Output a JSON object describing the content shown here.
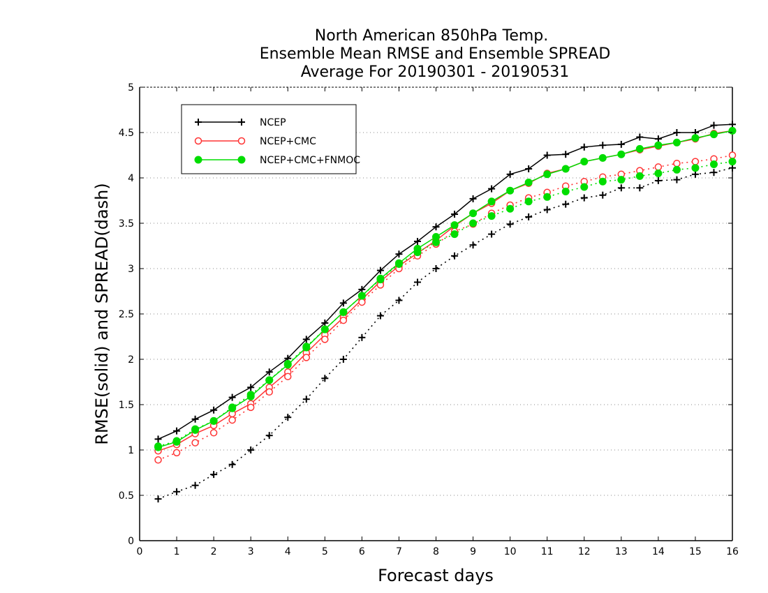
{
  "chart_data": {
    "type": "line",
    "title": [
      "North American 850hPa Temp.",
      "Ensemble Mean RMSE and Ensemble SPREAD",
      "Average For 20190301 - 20190531"
    ],
    "xlabel": "Forecast days",
    "ylabel": "RMSE(solid) and SPREAD(dash)",
    "xlim": [
      0,
      16
    ],
    "ylim": [
      0,
      5
    ],
    "xticks": [
      0,
      1,
      2,
      3,
      4,
      5,
      6,
      7,
      8,
      9,
      10,
      11,
      12,
      13,
      14,
      15,
      16
    ],
    "yticks": [
      0,
      0.5,
      1,
      1.5,
      2,
      2.5,
      3,
      3.5,
      4,
      4.5,
      5
    ],
    "ytick_labels": [
      "0",
      "0.5",
      "1",
      "1.5",
      "2",
      "2.5",
      "3",
      "3.5",
      "4",
      "4.5",
      "5"
    ],
    "grid": "horizontal dotted",
    "legend_position": "top-left",
    "x": [
      0.5,
      1,
      1.5,
      2,
      2.5,
      3,
      3.5,
      4,
      4.5,
      5,
      5.5,
      6,
      6.5,
      7,
      7.5,
      8,
      8.5,
      9,
      9.5,
      10,
      10.5,
      11,
      11.5,
      12,
      12.5,
      13,
      13.5,
      14,
      14.5,
      15,
      15.5,
      16
    ],
    "series": [
      {
        "name": "NCEP",
        "metric": "RMSE",
        "line": "solid",
        "marker": "plus",
        "color": "#000000",
        "values": [
          1.12,
          1.21,
          1.34,
          1.44,
          1.58,
          1.69,
          1.86,
          2.01,
          2.22,
          2.4,
          2.62,
          2.77,
          2.98,
          3.16,
          3.3,
          3.46,
          3.6,
          3.77,
          3.88,
          4.04,
          4.1,
          4.25,
          4.26,
          4.34,
          4.36,
          4.37,
          4.45,
          4.43,
          4.5,
          4.5,
          4.58,
          4.59
        ]
      },
      {
        "metric": "SPREAD",
        "line": "dash",
        "marker": "plus",
        "color": "#000000",
        "values": [
          0.46,
          0.54,
          0.61,
          0.73,
          0.84,
          1.0,
          1.16,
          1.36,
          1.56,
          1.79,
          2.0,
          2.24,
          2.48,
          2.65,
          2.85,
          3.0,
          3.14,
          3.26,
          3.38,
          3.49,
          3.57,
          3.65,
          3.71,
          3.78,
          3.81,
          3.89,
          3.89,
          3.97,
          3.98,
          4.04,
          4.06,
          4.11
        ]
      },
      {
        "name": "NCEP+CMC",
        "metric": "RMSE",
        "line": "solid",
        "marker": "open-circle",
        "color": "#ff3333",
        "values": [
          0.99,
          1.06,
          1.18,
          1.27,
          1.4,
          1.51,
          1.69,
          1.86,
          2.07,
          2.27,
          2.46,
          2.66,
          2.86,
          3.03,
          3.17,
          3.31,
          3.47,
          3.61,
          3.72,
          3.86,
          3.94,
          4.05,
          4.1,
          4.18,
          4.22,
          4.26,
          4.31,
          4.35,
          4.39,
          4.43,
          4.49,
          4.52
        ]
      },
      {
        "metric": "SPREAD",
        "line": "dash",
        "marker": "open-circle",
        "color": "#ff3333",
        "values": [
          0.89,
          0.97,
          1.08,
          1.19,
          1.33,
          1.47,
          1.64,
          1.81,
          2.02,
          2.22,
          2.43,
          2.63,
          2.82,
          3.0,
          3.14,
          3.27,
          3.41,
          3.49,
          3.61,
          3.7,
          3.78,
          3.84,
          3.91,
          3.96,
          4.01,
          4.04,
          4.08,
          4.12,
          4.16,
          4.18,
          4.21,
          4.25
        ]
      },
      {
        "name": "NCEP+CMC+FNMOC",
        "metric": "RMSE",
        "line": "solid",
        "marker": "filled-circle",
        "color": "#00dd00",
        "values": [
          1.03,
          1.09,
          1.22,
          1.32,
          1.46,
          1.59,
          1.77,
          1.94,
          2.13,
          2.33,
          2.52,
          2.7,
          2.89,
          3.06,
          3.22,
          3.35,
          3.48,
          3.61,
          3.74,
          3.86,
          3.95,
          4.04,
          4.1,
          4.18,
          4.22,
          4.26,
          4.32,
          4.36,
          4.39,
          4.44,
          4.48,
          4.52
        ]
      },
      {
        "metric": "SPREAD",
        "line": "dash",
        "marker": "filled-circle",
        "color": "#00dd00",
        "values": [
          1.04,
          1.1,
          1.23,
          1.32,
          1.47,
          1.61,
          1.77,
          1.95,
          2.14,
          2.33,
          2.52,
          2.7,
          2.88,
          3.05,
          3.18,
          3.29,
          3.38,
          3.5,
          3.58,
          3.66,
          3.74,
          3.79,
          3.85,
          3.9,
          3.96,
          3.98,
          4.02,
          4.05,
          4.09,
          4.11,
          4.15,
          4.18
        ]
      }
    ]
  }
}
